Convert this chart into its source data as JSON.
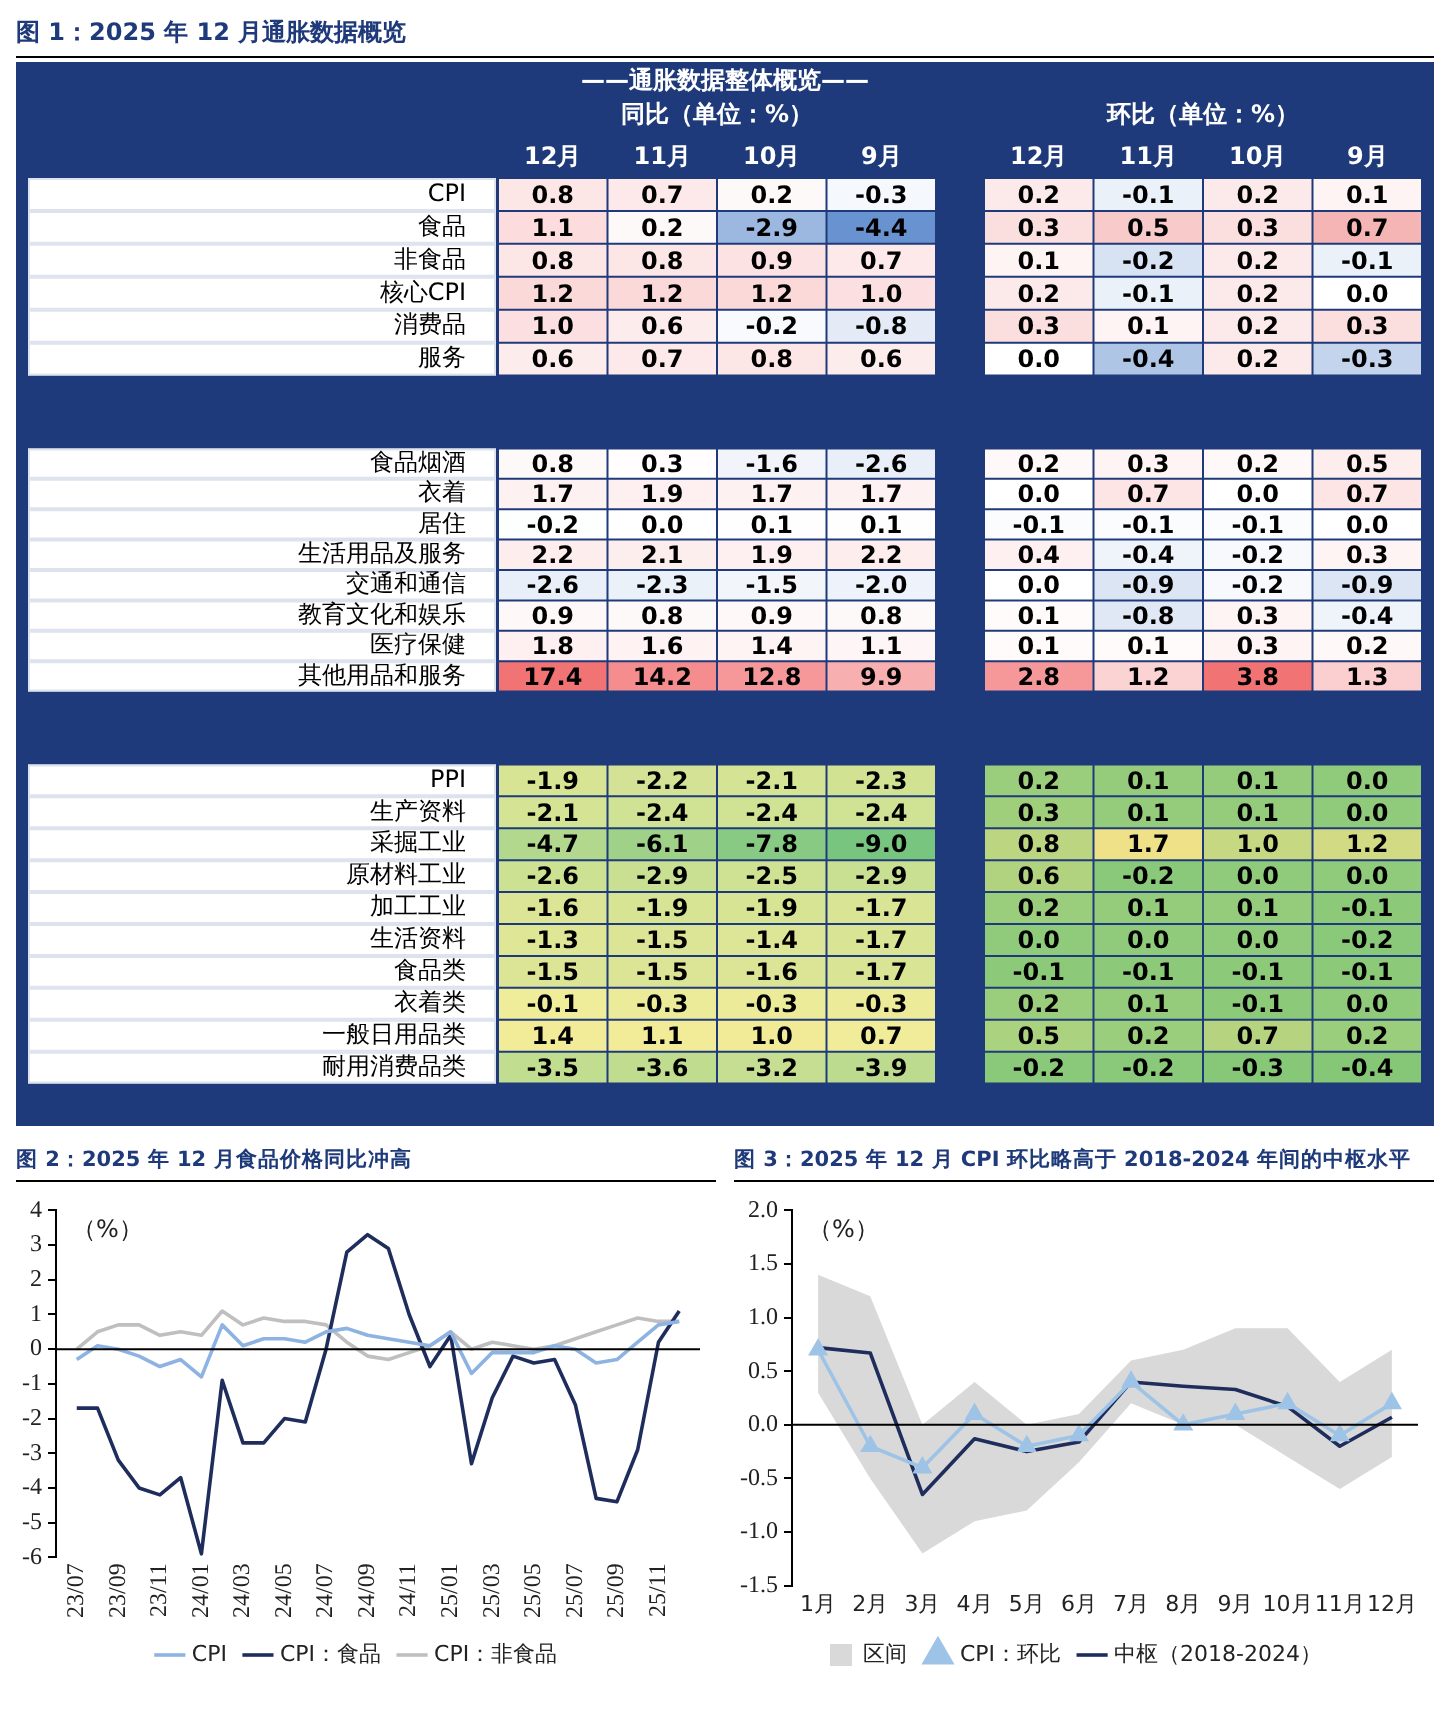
{
  "chart_data": [
    {
      "type": "heatmap",
      "title": "图 1：2025 年 12 月通胀数据概览",
      "subtitle": "——通胀数据整体概览——",
      "annotations": [
        "同比（单位：%）",
        "环比（单位：%）"
      ],
      "categories": [
        "12月",
        "11月",
        "10月",
        "9月",
        null,
        "12月",
        "11月",
        "10月",
        "9月"
      ],
      "y_categories": [
        "CPI",
        "食品",
        "非食品",
        "核心CPI",
        "消费品",
        "服务"
      ],
      "data_labels": true,
      "colors": [
        [
          "#4f7fc8",
          "#ffffff",
          "#f05a5c"
        ],
        [
          "#5a88cc",
          "#ffffff",
          "#f4a8a8"
        ]
      ],
      "cells": [
        [
          0.8,
          0.7,
          0.2,
          -0.3,
          null,
          0.2,
          -0.1,
          0.2,
          0.1
        ],
        [
          1.1,
          0.2,
          -2.9,
          -4.4,
          null,
          0.3,
          0.5,
          0.3,
          0.7
        ],
        [
          0.8,
          0.8,
          0.9,
          0.7,
          null,
          0.1,
          -0.2,
          0.2,
          -0.1
        ],
        [
          1.2,
          1.2,
          1.2,
          1.0,
          null,
          0.2,
          -0.1,
          0.2,
          0.0
        ],
        [
          1.0,
          0.6,
          -0.2,
          -0.8,
          null,
          0.3,
          0.1,
          0.2,
          0.3
        ],
        [
          0.6,
          0.7,
          0.8,
          0.6,
          null,
          0.0,
          -0.4,
          0.2,
          -0.3
        ]
      ],
      "cell_labels": [
        [
          "0.8",
          "0.7",
          "0.2",
          "-0.3",
          null,
          "0.2",
          "-0.1",
          "0.2",
          "0.1"
        ],
        [
          "1.1",
          "0.2",
          "-2.9",
          "-4.4",
          null,
          "0.3",
          "0.5",
          "0.3",
          "0.7"
        ],
        [
          "0.8",
          "0.8",
          "0.9",
          "0.7",
          null,
          "0.1",
          "-0.2",
          "0.2",
          "-0.1"
        ],
        [
          "1.2",
          "1.2",
          "1.2",
          "1.0",
          null,
          "0.2",
          "-0.1",
          "0.2",
          "0.0"
        ],
        [
          "1.0",
          "0.6",
          "-0.2",
          "-0.8",
          null,
          "0.3",
          "0.1",
          "0.2",
          "0.3"
        ],
        [
          "0.6",
          "0.7",
          "0.8",
          "0.6",
          null,
          "0.0",
          "-0.4",
          "0.2",
          "-0.3"
        ]
      ]
    },
    {
      "type": "heatmap",
      "categories": [
        null,
        null,
        null,
        null,
        null,
        null,
        null,
        null,
        null
      ],
      "y_categories": [
        "食品烟酒",
        "衣着",
        "居住",
        "生活用品及服务",
        "交通和通信",
        "教育文化和娱乐",
        "医疗保健",
        "其他用品和服务"
      ],
      "tick_labels": "y",
      "data_labels": true,
      "colors": [
        [
          "#4f7fc8",
          "#ffffff",
          "#f05a5c"
        ],
        [
          "#4f7fc8",
          "#ffffff",
          "#f05a5c"
        ]
      ],
      "cells": [
        [
          0.8,
          0.3,
          -1.6,
          -2.6,
          null,
          0.2,
          0.3,
          0.2,
          0.5
        ],
        [
          1.7,
          1.9,
          1.7,
          1.7,
          null,
          0.0,
          0.7,
          0.0,
          0.7
        ],
        [
          -0.2,
          0.0,
          0.1,
          0.1,
          null,
          -0.1,
          -0.1,
          -0.1,
          0.0
        ],
        [
          2.2,
          2.1,
          1.9,
          2.2,
          null,
          0.4,
          -0.4,
          -0.2,
          0.3
        ],
        [
          -2.6,
          -2.3,
          -1.5,
          -2.0,
          null,
          0.0,
          -0.9,
          -0.2,
          -0.9
        ],
        [
          0.9,
          0.8,
          0.9,
          0.8,
          null,
          0.1,
          -0.8,
          0.3,
          -0.4
        ],
        [
          1.8,
          1.6,
          1.4,
          1.1,
          null,
          0.1,
          0.1,
          0.3,
          0.2
        ],
        [
          17.4,
          14.2,
          12.8,
          9.9,
          null,
          2.8,
          1.2,
          3.8,
          1.3
        ]
      ],
      "cell_labels": [
        [
          "0.8",
          "0.3",
          "-1.6",
          "-2.6",
          null,
          "0.2",
          "0.3",
          "0.2",
          "0.5"
        ],
        [
          "1.7",
          "1.9",
          "1.7",
          "1.7",
          null,
          "0.0",
          "0.7",
          "0.0",
          "0.7"
        ],
        [
          "-0.2",
          "0.0",
          "0.1",
          "0.1",
          null,
          "-0.1",
          "-0.1",
          "-0.1",
          "0.0"
        ],
        [
          "2.2",
          "2.1",
          "1.9",
          "2.2",
          null,
          "0.4",
          "-0.4",
          "-0.2",
          "0.3"
        ],
        [
          "-2.6",
          "-2.3",
          "-1.5",
          "-2.0",
          null,
          "0.0",
          "-0.9",
          "-0.2",
          "-0.9"
        ],
        [
          "0.9",
          "0.8",
          "0.9",
          "0.8",
          null,
          "0.1",
          "-0.8",
          "0.3",
          "-0.4"
        ],
        [
          "1.8",
          "1.6",
          "1.4",
          "1.1",
          null,
          "0.1",
          "0.1",
          "0.3",
          "0.2"
        ],
        [
          "17.4",
          "14.2",
          "12.8",
          "9.9",
          null,
          "2.8",
          "1.2",
          "3.8",
          "1.3"
        ]
      ]
    },
    {
      "type": "heatmap",
      "categories": [
        null,
        null,
        null,
        null,
        null,
        null,
        null,
        null,
        null
      ],
      "y_categories": [
        "PPI",
        "生产资料",
        "采掘工业",
        "原材料工业",
        "加工工业",
        "生活资料",
        "食品类",
        "衣着类",
        "一般日用品类",
        "耐用消费品类"
      ],
      "tick_labels": "y",
      "data_labels": true,
      "colors": [
        [
          "#63be7b",
          "#f0ec9a",
          "#ffe58a"
        ],
        [
          "#5cb86c",
          "#8fcb7a",
          "#ffe58a"
        ]
      ],
      "cells": [
        [
          -1.9,
          -2.2,
          -2.1,
          -2.3,
          null,
          0.2,
          0.1,
          0.1,
          0.0
        ],
        [
          -2.1,
          -2.4,
          -2.4,
          -2.4,
          null,
          0.3,
          0.1,
          0.1,
          0.0
        ],
        [
          -4.7,
          -6.1,
          -7.8,
          -9.0,
          null,
          0.8,
          1.7,
          1.0,
          1.2
        ],
        [
          -2.6,
          -2.9,
          -2.5,
          -2.9,
          null,
          0.6,
          -0.2,
          0.0,
          0.0
        ],
        [
          -1.6,
          -1.9,
          -1.9,
          -1.7,
          null,
          0.2,
          0.1,
          0.1,
          -0.1
        ],
        [
          -1.3,
          -1.5,
          -1.4,
          -1.7,
          null,
          0.0,
          0.0,
          0.0,
          -0.2
        ],
        [
          -1.5,
          -1.5,
          -1.6,
          -1.7,
          null,
          -0.1,
          -0.1,
          -0.1,
          -0.1
        ],
        [
          -0.1,
          -0.3,
          -0.3,
          -0.3,
          null,
          0.2,
          0.1,
          -0.1,
          0.0
        ],
        [
          1.4,
          1.1,
          1.0,
          0.7,
          null,
          0.5,
          0.2,
          0.7,
          0.2
        ],
        [
          -3.5,
          -3.6,
          -3.2,
          -3.9,
          null,
          -0.2,
          -0.2,
          -0.3,
          -0.4
        ]
      ],
      "cell_labels": [
        [
          "-1.9",
          "-2.2",
          "-2.1",
          "-2.3",
          null,
          "0.2",
          "0.1",
          "0.1",
          "0.0"
        ],
        [
          "-2.1",
          "-2.4",
          "-2.4",
          "-2.4",
          null,
          "0.3",
          "0.1",
          "0.1",
          "0.0"
        ],
        [
          "-4.7",
          "-6.1",
          "-7.8",
          "-9.0",
          null,
          "0.8",
          "1.7",
          "1.0",
          "1.2"
        ],
        [
          "-2.6",
          "-2.9",
          "-2.5",
          "-2.9",
          null,
          "0.6",
          "-0.2",
          "0.0",
          "0.0"
        ],
        [
          "-1.6",
          "-1.9",
          "-1.9",
          "-1.7",
          null,
          "0.2",
          "0.1",
          "0.1",
          "-0.1"
        ],
        [
          "-1.3",
          "-1.5",
          "-1.4",
          "-1.7",
          null,
          "0.0",
          "0.0",
          "0.0",
          "-0.2"
        ],
        [
          "-1.5",
          "-1.5",
          "-1.6",
          "-1.7",
          null,
          "-0.1",
          "-0.1",
          "-0.1",
          "-0.1"
        ],
        [
          "-0.1",
          "-0.3",
          "-0.3",
          "-0.3",
          null,
          "0.2",
          "0.1",
          "-0.1",
          "0.0"
        ],
        [
          "1.4",
          "1.1",
          "1.0",
          "0.7",
          null,
          "0.5",
          "0.2",
          "0.7",
          "0.2"
        ],
        [
          "-3.5",
          "-3.6",
          "-3.2",
          "-3.9",
          null,
          "-0.2",
          "-0.2",
          "-0.3",
          "-0.4"
        ]
      ]
    },
    {
      "type": "line",
      "title": "图 2：2025 年 12 月食品价格同比冲高",
      "annotations": [
        "（%）"
      ],
      "marker": "none",
      "legend": "bottom",
      "x": [
        "2023-07",
        "2023-08",
        "2023-09",
        "2023-10",
        "2023-11",
        "2023-12",
        "2024-01",
        "2024-02",
        "2024-03",
        "2024-04",
        "2024-05",
        "2024-06",
        "2024-07",
        "2024-08",
        "2024-09",
        "2024-10",
        "2024-11",
        "2024-12",
        "2025-01",
        "2025-02",
        "2025-03",
        "2025-04",
        "2025-05",
        "2025-06",
        "2025-07",
        "2025-08",
        "2025-09",
        "2025-10",
        "2025-11",
        "2025-12"
      ],
      "xlim": [
        "2023-06",
        "2026-01"
      ],
      "xticks": [
        {
          "value": "2023-07",
          "label": "23/07"
        },
        {
          "value": "2023-09",
          "label": "23/09"
        },
        {
          "value": "2023-11",
          "label": "23/11"
        },
        {
          "value": "2024-01",
          "label": "24/01"
        },
        {
          "value": "2024-03",
          "label": "24/03"
        },
        {
          "value": "2024-05",
          "label": "24/05"
        },
        {
          "value": "2024-07",
          "label": "24/07"
        },
        {
          "value": "2024-09",
          "label": "24/09"
        },
        {
          "value": "2024-11",
          "label": "24/11"
        },
        {
          "value": "2025-01",
          "label": "25/01"
        },
        {
          "value": "2025-03",
          "label": "25/03"
        },
        {
          "value": "2025-05",
          "label": "25/05"
        },
        {
          "value": "2025-07",
          "label": "25/07"
        },
        {
          "value": "2025-09",
          "label": "25/09"
        },
        {
          "value": "2025-11",
          "label": "25/11"
        }
      ],
      "ylim": [
        -6,
        4
      ],
      "yticks": [
        -6,
        -5,
        -4,
        -3,
        -2,
        -1,
        0,
        1,
        2,
        3,
        4
      ],
      "series": [
        {
          "name": "CPI",
          "color": "#8db3e2",
          "values": [
            -0.3,
            0.1,
            0.0,
            -0.2,
            -0.5,
            -0.3,
            -0.8,
            0.7,
            0.1,
            0.3,
            0.3,
            0.2,
            0.5,
            0.6,
            0.4,
            0.3,
            0.2,
            0.1,
            0.5,
            -0.7,
            -0.1,
            -0.1,
            -0.1,
            0.1,
            0.0,
            -0.4,
            -0.3,
            0.2,
            0.7,
            0.8
          ]
        },
        {
          "name": "CPI：食品",
          "color": "#1f2d5c",
          "values": [
            -1.7,
            -1.7,
            -3.2,
            -4.0,
            -4.2,
            -3.7,
            -5.9,
            -0.9,
            -2.7,
            -2.7,
            -2.0,
            -2.1,
            0.0,
            2.8,
            3.3,
            2.9,
            1.0,
            -0.5,
            0.4,
            -3.3,
            -1.4,
            -0.2,
            -0.4,
            -0.3,
            -1.6,
            -4.3,
            -4.4,
            -2.9,
            0.2,
            1.1
          ]
        },
        {
          "name": "CPI：非食品",
          "color": "#bfbfbf",
          "values": [
            0.0,
            0.5,
            0.7,
            0.7,
            0.4,
            0.5,
            0.4,
            1.1,
            0.7,
            0.9,
            0.8,
            0.8,
            0.7,
            0.2,
            -0.2,
            -0.3,
            -0.1,
            0.1,
            0.5,
            0.0,
            0.2,
            0.1,
            0.0,
            0.1,
            0.3,
            0.5,
            0.7,
            0.9,
            0.8,
            0.8
          ]
        }
      ]
    },
    {
      "type": "line",
      "title": "图 3：2025 年 12 月 CPI 环比略高于 2018-2024 年间的中枢水平",
      "annotations": [
        "（%）"
      ],
      "legend": "bottom",
      "categories": [
        "1月",
        "2月",
        "3月",
        "4月",
        "5月",
        "6月",
        "7月",
        "8月",
        "9月",
        "10月",
        "11月",
        "12月"
      ],
      "ylim": [
        -1.5,
        2.0
      ],
      "yticks": [
        -1.5,
        {
          "value": -1.0,
          "label": "-1.0"
        },
        -0.5,
        {
          "value": 0,
          "label": "0.0"
        },
        0.5,
        {
          "value": 1.0,
          "label": "1.0"
        },
        1.5,
        {
          "value": 2.0,
          "label": "2.0"
        }
      ],
      "series": [
        {
          "name": "区间",
          "type": "area",
          "color": "#d9d9d9",
          "values": [
            null,
            null,
            null,
            null,
            null,
            null,
            null,
            null,
            null,
            null,
            null,
            null
          ],
          "lower": [
            0.3,
            -0.5,
            -1.2,
            -0.9,
            -0.8,
            -0.35,
            0.2,
            0.0,
            0.0,
            -0.3,
            -0.6,
            -0.3
          ],
          "upper": [
            1.4,
            1.2,
            0.0,
            0.4,
            0.0,
            0.1,
            0.6,
            0.7,
            0.9,
            0.9,
            0.4,
            0.7
          ]
        },
        {
          "name": "CPI：环比",
          "color": "#9dc3e6",
          "marker": "triangle",
          "values": [
            0.7,
            -0.2,
            -0.4,
            0.1,
            -0.2,
            -0.1,
            0.4,
            0.0,
            0.1,
            0.2,
            -0.1,
            0.2
          ]
        },
        {
          "name": "中枢（2018-2024）",
          "color": "#1f2d5c",
          "marker": "none",
          "values": [
            0.72,
            0.67,
            -0.65,
            -0.13,
            -0.25,
            -0.16,
            0.4,
            0.36,
            0.33,
            0.17,
            -0.2,
            0.07
          ]
        }
      ]
    }
  ]
}
